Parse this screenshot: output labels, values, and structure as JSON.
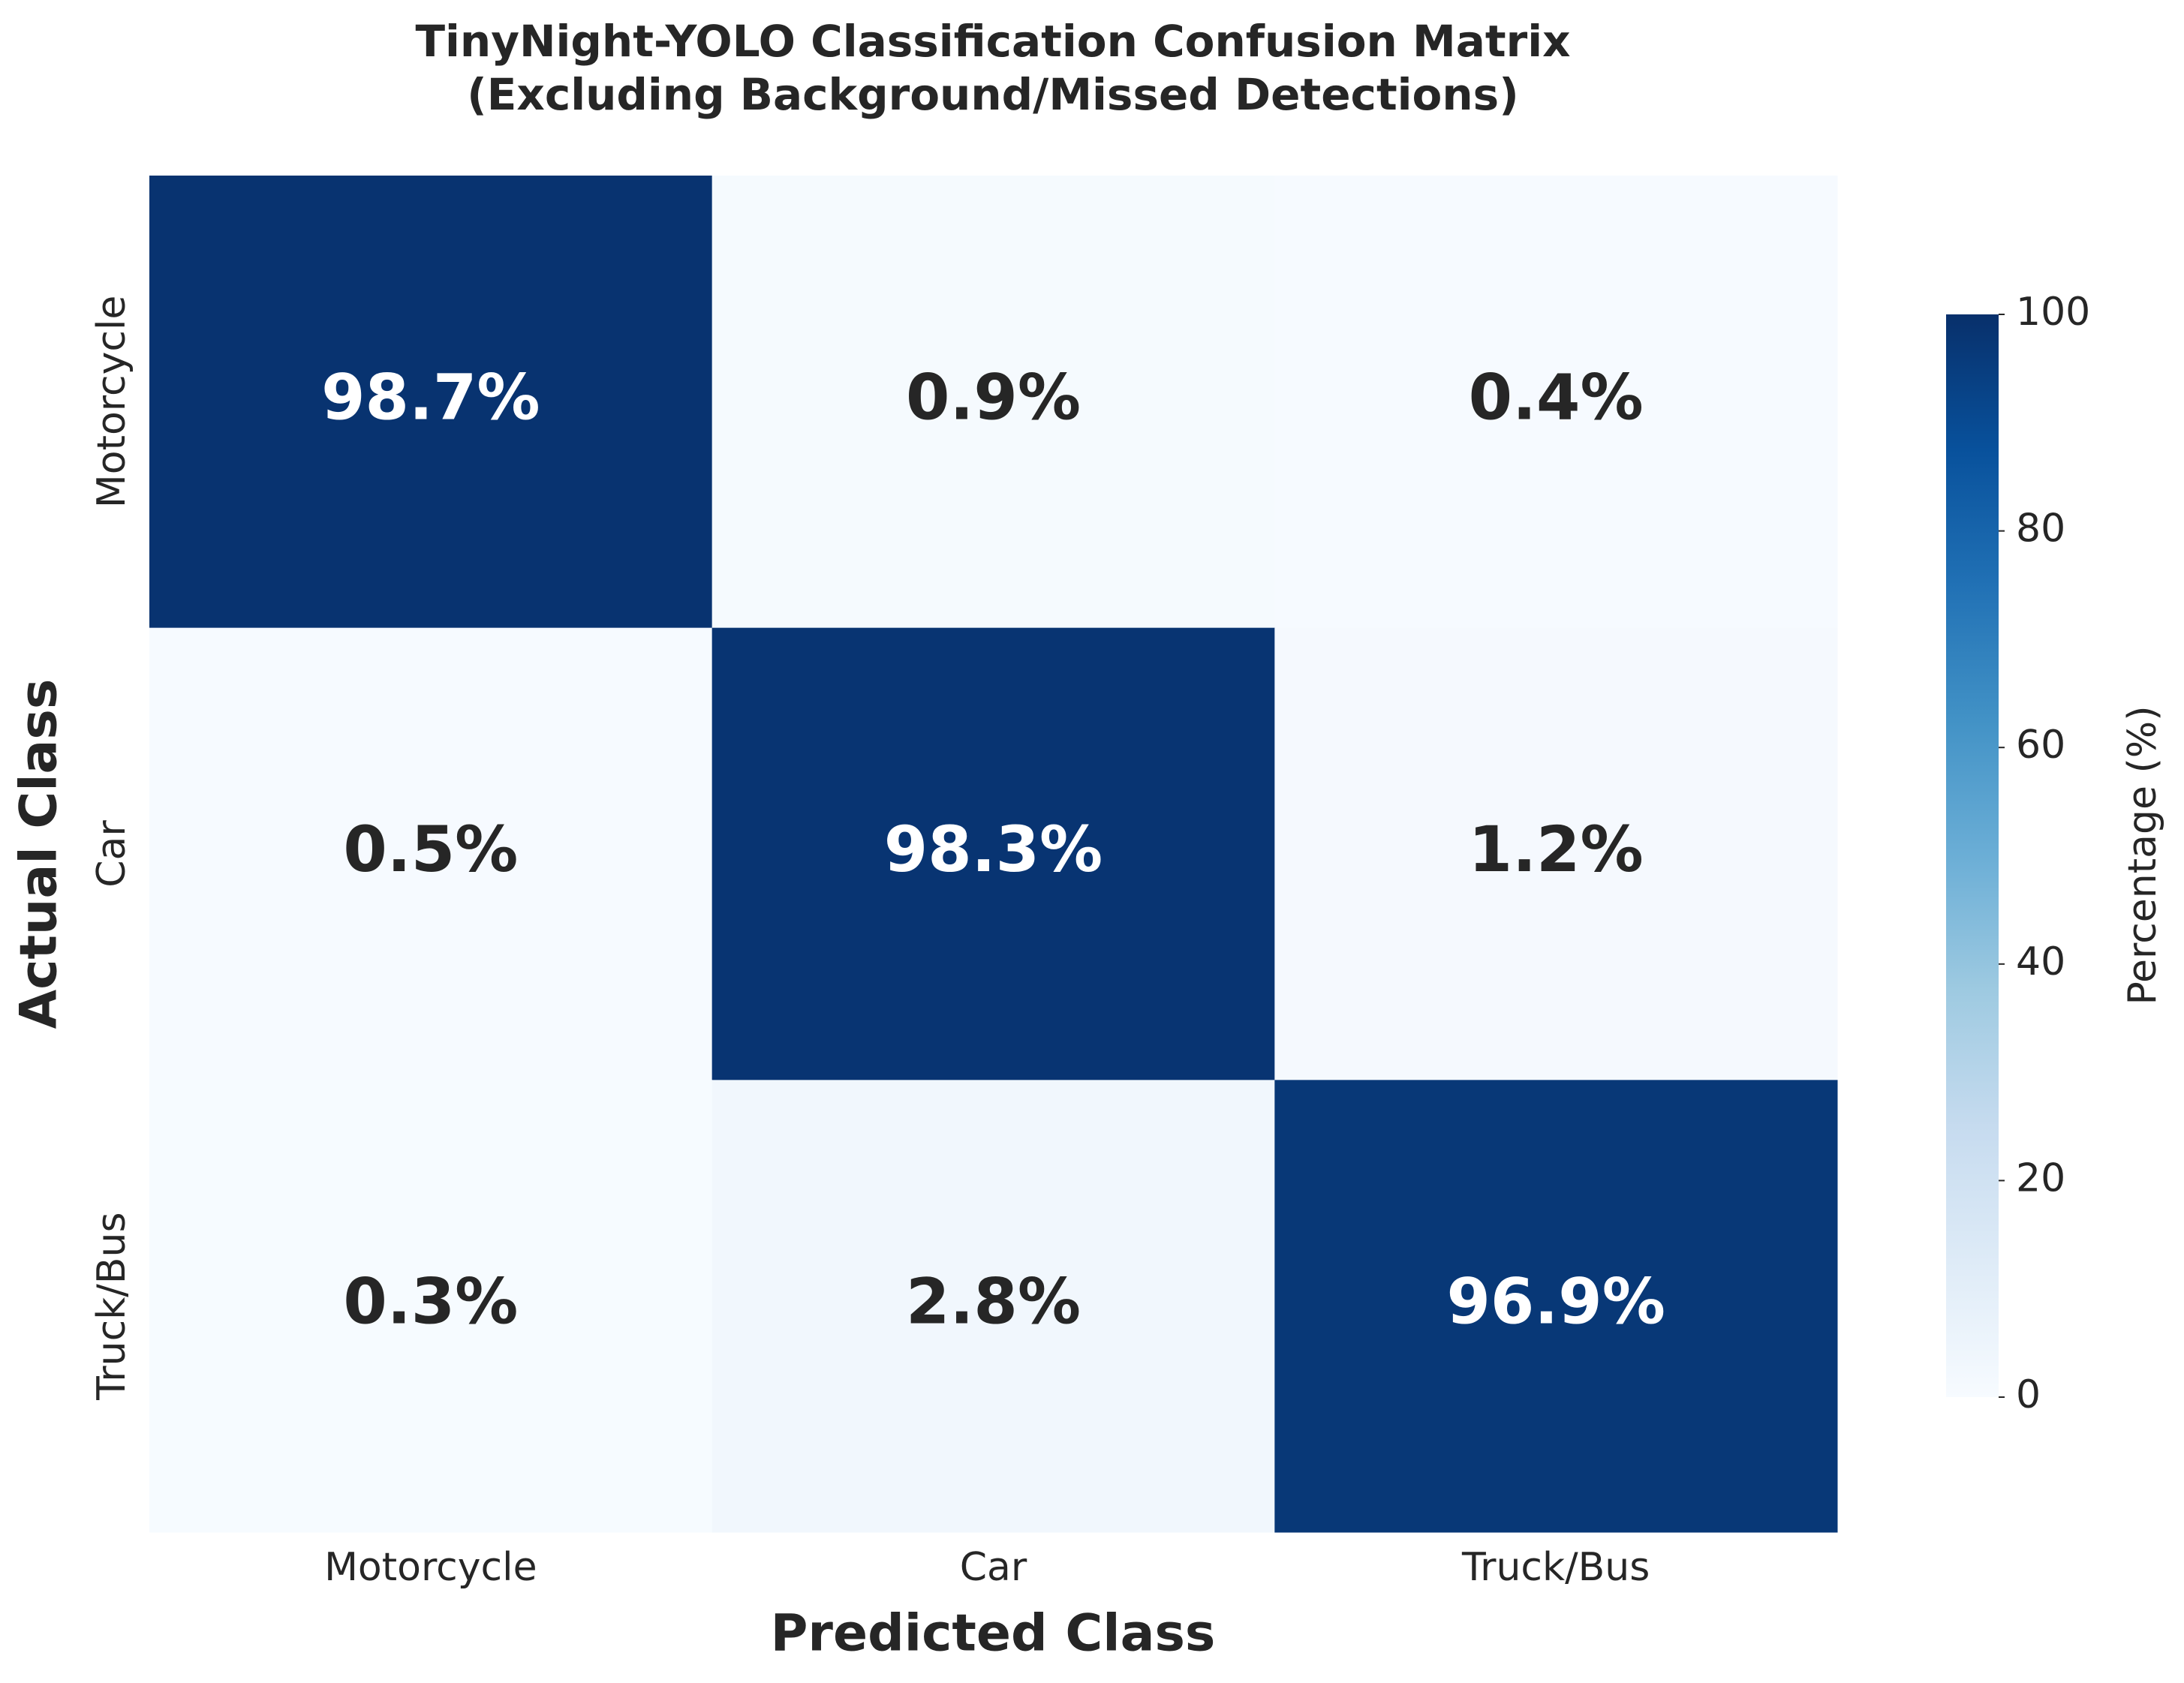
{
  "chart_data": {
    "type": "heatmap",
    "title": "TinyNight-YOLO Classification Confusion Matrix",
    "subtitle": "(Excluding Background/Missed Detections)",
    "x_label": "Predicted Class",
    "y_label": "Actual Class",
    "x_categories": [
      "Motorcycle",
      "Car",
      "Truck/Bus"
    ],
    "y_categories": [
      "Motorcycle",
      "Car",
      "Truck/Bus"
    ],
    "values": [
      [
        98.7,
        0.9,
        0.4
      ],
      [
        0.5,
        98.3,
        1.2
      ],
      [
        0.3,
        2.8,
        96.9
      ]
    ],
    "value_labels": [
      [
        "98.7%",
        "0.9%",
        "0.4%"
      ],
      [
        "0.5%",
        "98.3%",
        "1.2%"
      ],
      [
        "0.3%",
        "2.8%",
        "96.9%"
      ]
    ],
    "colorbar_label": "Percentage (%)",
    "clim": [
      0,
      100
    ],
    "cticks": [
      0,
      20,
      40,
      60,
      80,
      100
    ],
    "colormap": [
      "#f7fbff",
      "#deebf7",
      "#c6dbef",
      "#9ecae1",
      "#6baed6",
      "#4292c6",
      "#2171b5",
      "#08519c",
      "#08306b"
    ]
  }
}
